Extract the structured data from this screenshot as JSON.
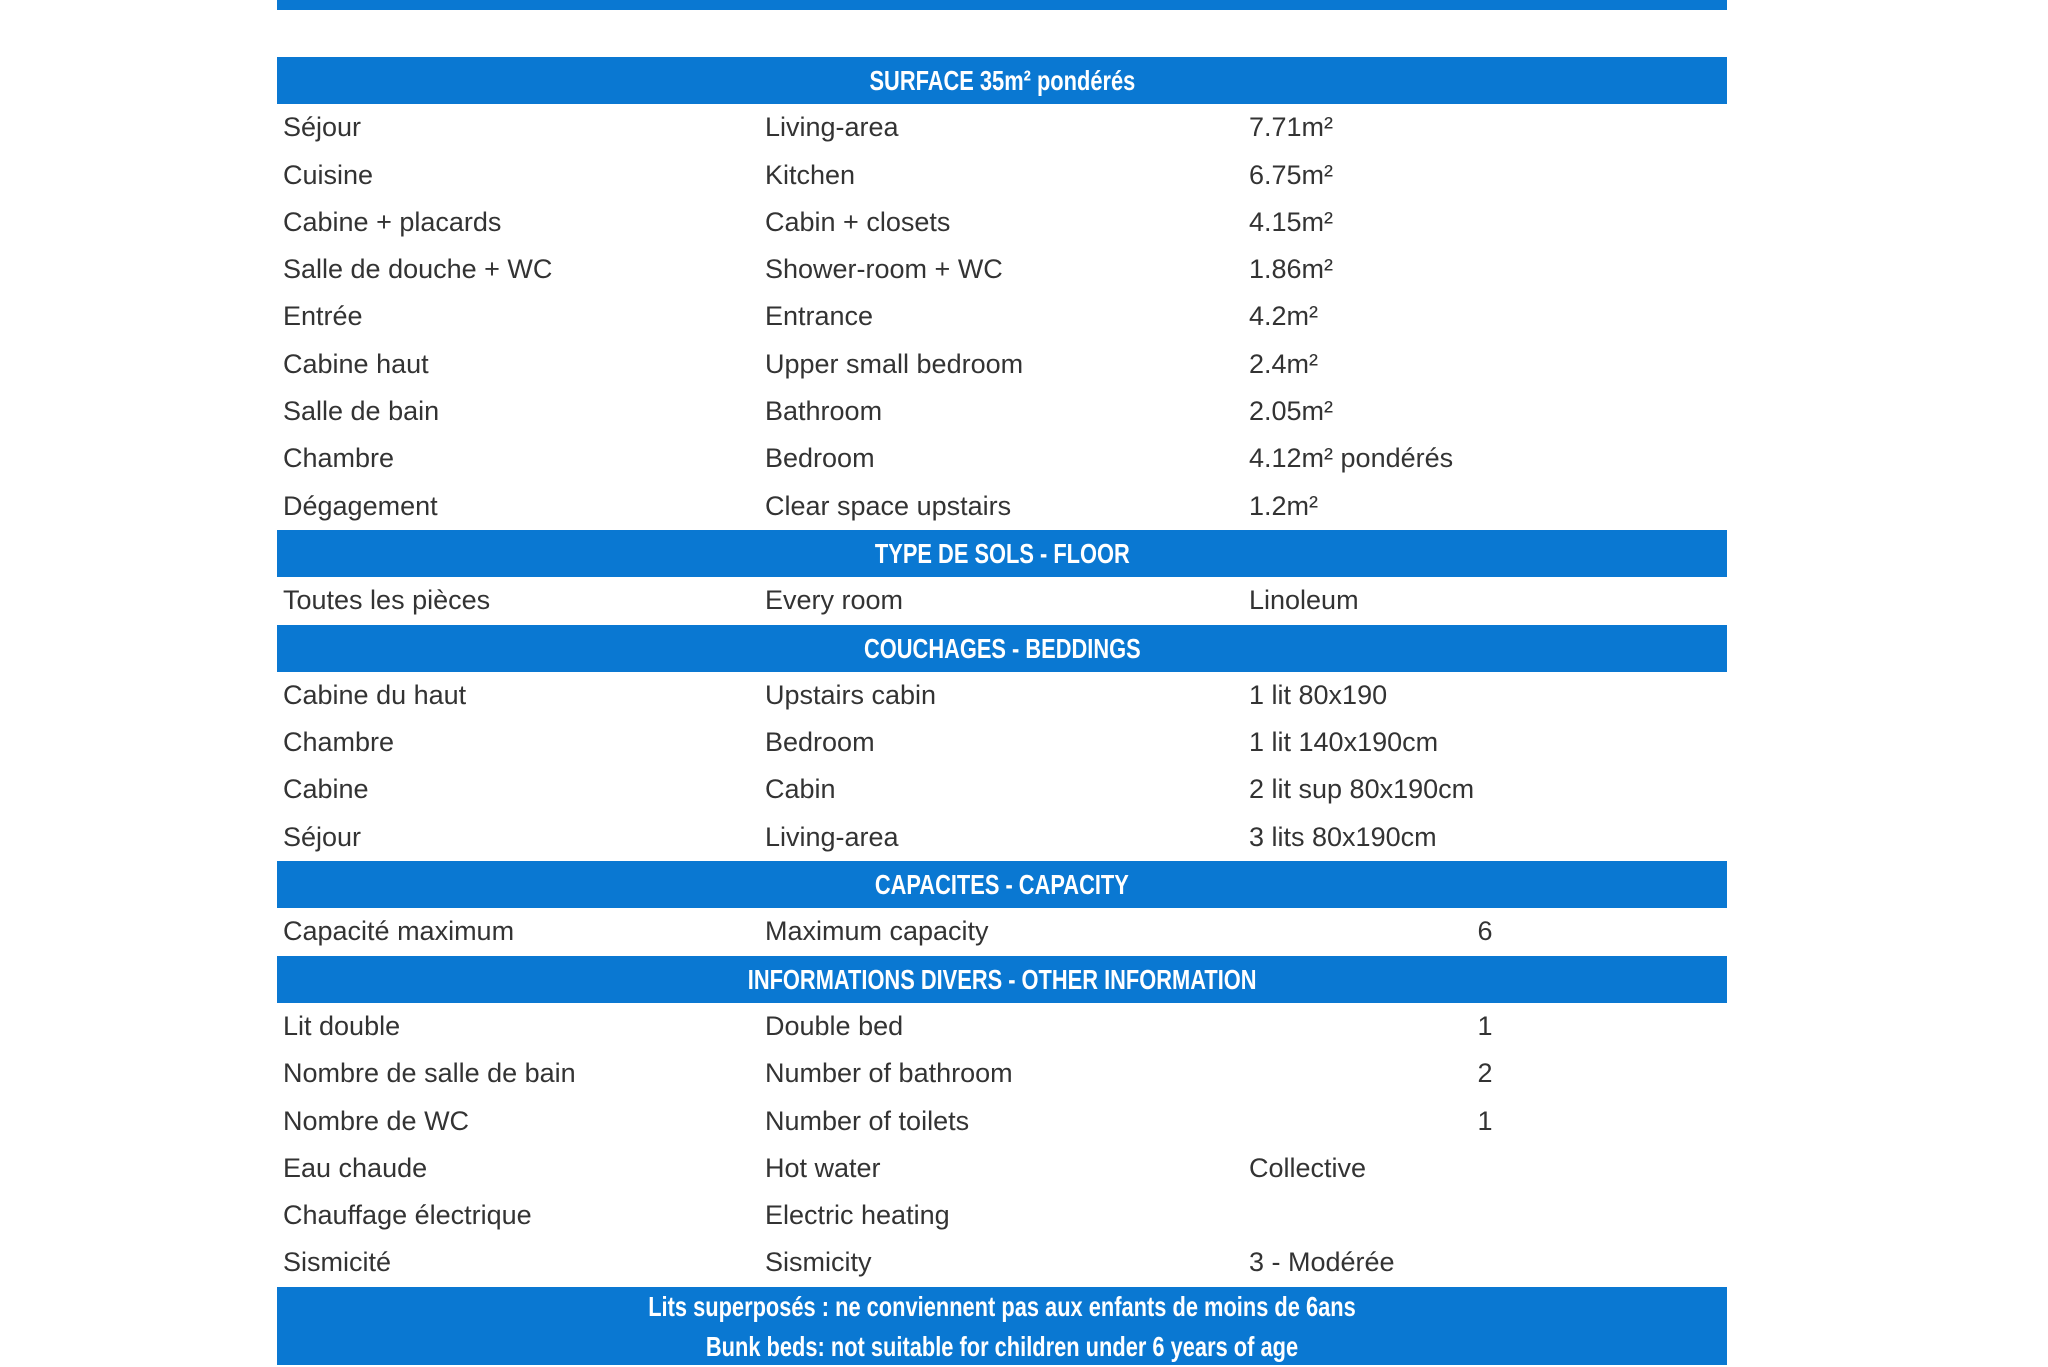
{
  "accent_color": "#0a78d2",
  "sections": [
    {
      "title": "SURFACE 35m² pondérés",
      "rows": [
        [
          "Séjour",
          "Living-area",
          "7.71m²"
        ],
        [
          "Cuisine",
          "Kitchen",
          "6.75m²"
        ],
        [
          "Cabine + placards",
          "Cabin + closets",
          "4.15m²"
        ],
        [
          "Salle de douche + WC",
          "Shower-room + WC",
          "1.86m²"
        ],
        [
          "Entrée",
          "Entrance",
          "4.2m²"
        ],
        [
          "Cabine haut",
          "Upper small bedroom",
          "2.4m²"
        ],
        [
          "Salle de bain",
          "Bathroom",
          "2.05m²"
        ],
        [
          "Chambre",
          "Bedroom",
          "4.12m² pondérés"
        ],
        [
          "Dégagement",
          "Clear space upstairs",
          "1.2m²"
        ]
      ]
    },
    {
      "title": "TYPE DE SOLS - FLOOR",
      "rows": [
        [
          "Toutes les pièces",
          "Every room",
          "Linoleum"
        ]
      ]
    },
    {
      "title": "COUCHAGES - BEDDINGS",
      "rows": [
        [
          "Cabine du haut",
          "Upstairs cabin",
          "1 lit 80x190"
        ],
        [
          "Chambre",
          "Bedroom",
          "1 lit 140x190cm"
        ],
        [
          "Cabine",
          "Cabin",
          "2 lit sup 80x190cm"
        ],
        [
          "Séjour",
          "Living-area",
          "3 lits 80x190cm"
        ]
      ]
    },
    {
      "title": "CAPACITES - CAPACITY",
      "rows": [
        [
          "Capacité maximum",
          "Maximum capacity",
          "",
          "6"
        ]
      ]
    },
    {
      "title": "INFORMATIONS DIVERS - OTHER INFORMATION",
      "rows": [
        [
          "Lit double",
          "Double bed",
          "",
          "1"
        ],
        [
          "Nombre de salle de bain",
          "Number of bathroom",
          "",
          "2"
        ],
        [
          "Nombre de WC",
          "Number of toilets",
          "",
          "1"
        ],
        [
          "Eau chaude",
          "Hot water",
          "Collective"
        ],
        [
          "Chauffage électrique",
          "Electric heating",
          ""
        ],
        [
          "Sismicité",
          "Sismicity",
          "3 - Modérée"
        ]
      ]
    }
  ],
  "footer": {
    "line_fr": "Lits superposés : ne conviennent pas aux enfants de moins de 6ans",
    "line_en": "Bunk beds: not suitable for children under 6 years of age"
  }
}
